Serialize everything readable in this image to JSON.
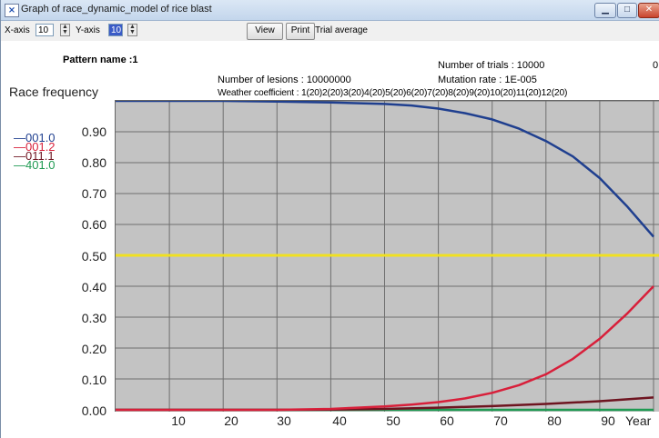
{
  "window": {
    "title": "Graph of race_dynamic_model of rice blast",
    "app_icon": "app-icon",
    "buttons": {
      "minimize": "minimize-icon",
      "maximize": "maximize-icon",
      "close": "close-icon"
    }
  },
  "toolbar": {
    "x_axis_label": "X-axis",
    "x_axis_value": "10",
    "y_axis_label": "Y-axis",
    "y_axis_value": "10",
    "view_label": "View",
    "print_label": "Print",
    "mode_text": "Trial average"
  },
  "info": {
    "pattern_name": "Pattern name :1",
    "number_of_lesions": "Number of lesions : 10000000",
    "weather_coefficient": "Weather coefficient : 1(20)2(20)3(20)4(20)5(20)6(20)7(20)8(20)9(20)10(20)11(20)12(20)",
    "number_of_trials": "Number of trials : 10000",
    "mutation_rate": "Mutation rate : 1E-005",
    "right_edge_text": "0"
  },
  "chart_data": {
    "type": "line",
    "title": "",
    "xlabel": "Year",
    "ylabel": "Race frequency",
    "xlim": [
      0,
      100
    ],
    "ylim": [
      0,
      1.0
    ],
    "x_tick_labels": [
      "10",
      "20",
      "30",
      "40",
      "50",
      "60",
      "70",
      "80",
      "90"
    ],
    "y_tick_labels": [
      "0.00",
      "0.10",
      "0.20",
      "0.30",
      "0.40",
      "0.50",
      "0.60",
      "0.70",
      "0.80",
      "0.90"
    ],
    "grid": true,
    "legend_position": "left",
    "series": [
      {
        "name": "001.0",
        "color": "#1f3f8f",
        "x": [
          0,
          10,
          20,
          30,
          40,
          50,
          55,
          60,
          65,
          70,
          75,
          80,
          85,
          90,
          95,
          100
        ],
        "y": [
          1.0,
          1.0,
          1.0,
          0.998,
          0.995,
          0.99,
          0.985,
          0.975,
          0.96,
          0.94,
          0.91,
          0.87,
          0.82,
          0.75,
          0.66,
          0.56
        ]
      },
      {
        "name": "001.2",
        "color": "#d81f3a",
        "x": [
          0,
          10,
          20,
          30,
          40,
          45,
          50,
          55,
          60,
          65,
          70,
          75,
          80,
          85,
          90,
          95,
          100
        ],
        "y": [
          0,
          0,
          0,
          0,
          0.003,
          0.007,
          0.011,
          0.017,
          0.025,
          0.037,
          0.055,
          0.08,
          0.115,
          0.165,
          0.23,
          0.31,
          0.4
        ]
      },
      {
        "name": "011.1",
        "color": "#6e1420",
        "x": [
          0,
          10,
          20,
          30,
          40,
          50,
          60,
          70,
          80,
          90,
          100
        ],
        "y": [
          0,
          0,
          0,
          0,
          0.001,
          0.003,
          0.007,
          0.012,
          0.019,
          0.028,
          0.04
        ]
      },
      {
        "name": "401.0",
        "color": "#1e9a52",
        "x": [
          0,
          10,
          20,
          30,
          40,
          50,
          60,
          70,
          80,
          90,
          100
        ],
        "y": [
          0,
          0,
          0,
          0,
          0,
          0,
          0,
          0,
          0,
          0,
          0
        ]
      }
    ],
    "reference_line": {
      "y": 0.5,
      "color": "#f0e020"
    }
  }
}
